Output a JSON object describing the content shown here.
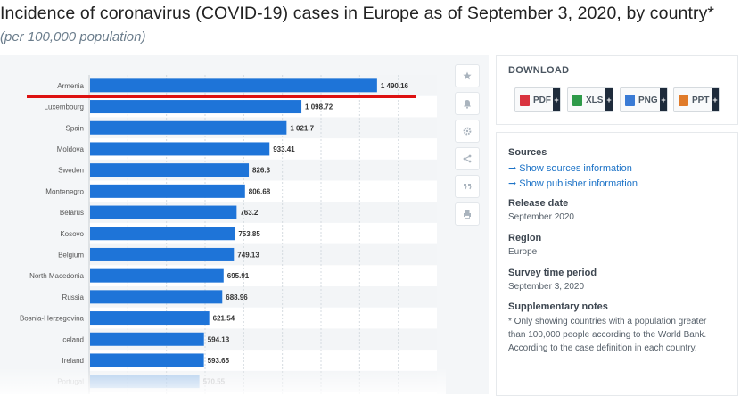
{
  "title": "Incidence of coronavirus (COVID-19) cases in Europe as of September 3, 2020, by country*",
  "subtitle": "(per 100,000 population)",
  "chart_data": {
    "type": "bar",
    "orientation": "horizontal",
    "title": "Incidence of coronavirus (COVID-19) cases in Europe as of September 3, 2020, by country*",
    "subtitle": "(per 100,000 population)",
    "categories": [
      "Armenia",
      "Luxembourg",
      "Spain",
      "Moldova",
      "Sweden",
      "Montenegro",
      "Belarus",
      "Kosovo",
      "Belgium",
      "North Macedonia",
      "Russia",
      "Bosnia-Herzegovina",
      "Iceland",
      "Ireland",
      "Portugal"
    ],
    "values": [
      1490.16,
      1098.72,
      1021.7,
      933.41,
      826.3,
      806.68,
      763.2,
      753.85,
      749.13,
      695.91,
      688.96,
      621.54,
      594.13,
      593.65,
      570.55
    ],
    "data_labels": [
      "1 490.16",
      "1 098.72",
      "1 021.7",
      "933.41",
      "826.3",
      "806.68",
      "763.2",
      "753.85",
      "749.13",
      "695.91",
      "688.96",
      "621.54",
      "594.13",
      "593.65",
      "570.55"
    ],
    "xlim": [
      0,
      1800
    ],
    "grid": true,
    "bar_color": "#1e74d8",
    "highlight_color": "#dd1111"
  },
  "toolbar": {
    "icons": [
      "star-icon",
      "bell-icon",
      "gear-icon",
      "share-icon",
      "quote-icon",
      "print-icon"
    ]
  },
  "download": {
    "heading": "DOWNLOAD",
    "buttons": [
      {
        "label": "PDF",
        "icon_color": "#d9333f"
      },
      {
        "label": "XLS",
        "icon_color": "#2e9a49"
      },
      {
        "label": "PNG",
        "icon_color": "#3a7bd5"
      },
      {
        "label": "PPT",
        "icon_color": "#e07b2a"
      }
    ],
    "plus": "+"
  },
  "info": {
    "sources_heading": "Sources",
    "show_sources": "➞ Show sources information",
    "show_publisher": "➞ Show publisher information",
    "release_heading": "Release date",
    "release_value": "September 2020",
    "region_heading": "Region",
    "region_value": "Europe",
    "survey_heading": "Survey time period",
    "survey_value": "September 3, 2020",
    "notes_heading": "Supplementary notes",
    "notes_value": "* Only showing countries with a population greater than 100,000 people according to the World Bank. According to the case definition in each country."
  }
}
